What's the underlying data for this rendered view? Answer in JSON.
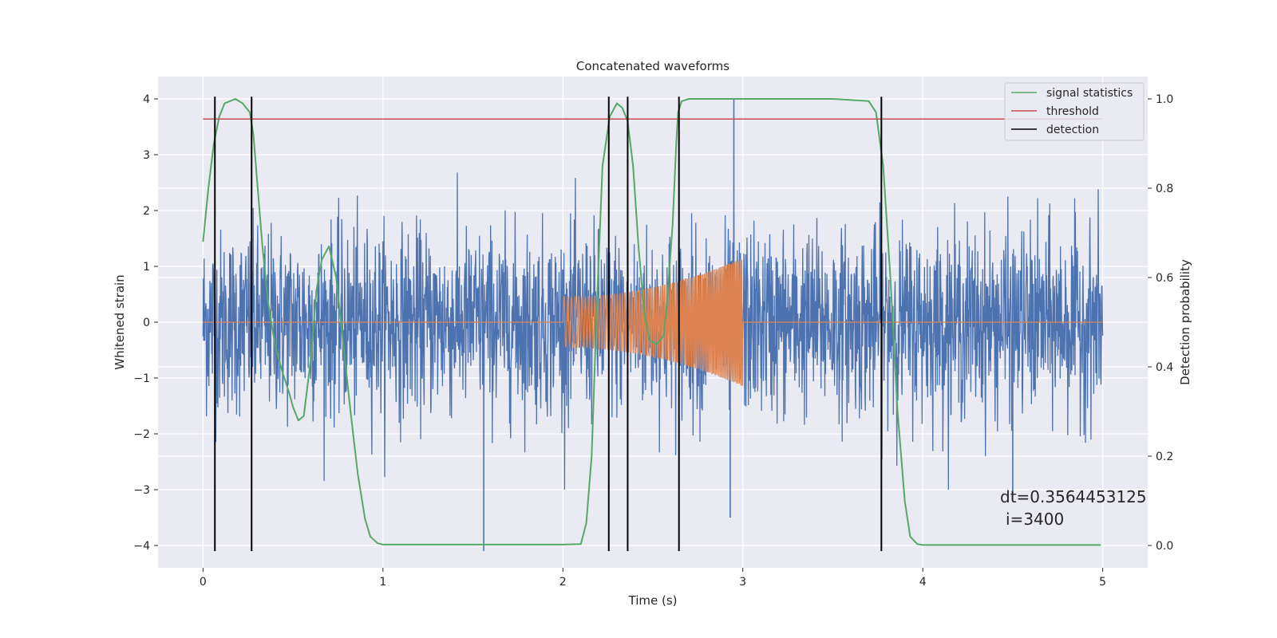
{
  "chart_data": {
    "type": "line",
    "title": "Concatenated waveforms",
    "xlabel": "Time (s)",
    "ylabel": "Whitened strain",
    "y2label": "Detection probability",
    "xlim": [
      -0.25,
      5.25
    ],
    "ylim": [
      -4.4,
      4.4
    ],
    "y2lim": [
      -0.05,
      1.05
    ],
    "x_ticks": [
      0,
      1,
      2,
      3,
      4,
      5
    ],
    "x_tick_labels": [
      "0",
      "1",
      "2",
      "3",
      "4",
      "5"
    ],
    "y_ticks": [
      -4,
      -3,
      -2,
      -1,
      0,
      1,
      2,
      3,
      4
    ],
    "y_tick_labels": [
      "−4",
      "−3",
      "−2",
      "−1",
      "0",
      "1",
      "2",
      "3",
      "4"
    ],
    "y2_ticks": [
      0.0,
      0.2,
      0.4,
      0.6,
      0.8,
      1.0
    ],
    "y2_tick_labels": [
      "0.0",
      "0.2",
      "0.4",
      "0.6",
      "0.8",
      "1.0"
    ],
    "grid": true,
    "legend_position": "top-right",
    "colors": {
      "strain": "#4c72b0",
      "injected": "#dd8452",
      "signal_statistics": "#55a868",
      "threshold": "#c44e52",
      "detection": "#000000",
      "plot_background": "#eaeaf2",
      "grid": "#ffffff"
    },
    "strain_series": {
      "x_range": [
        0,
        5
      ],
      "typical_amplitude": 1.8,
      "peak_max": 4.0,
      "peak_min": -4.1
    },
    "injected_signal": {
      "x_range": [
        2.0,
        3.0
      ],
      "amplitude_start": 0.45,
      "amplitude_end": 1.15
    },
    "series": [
      {
        "name": "signal statistics",
        "axis": "right",
        "x": [
          0.0,
          0.03,
          0.06,
          0.09,
          0.12,
          0.18,
          0.22,
          0.26,
          0.28,
          0.3,
          0.33,
          0.36,
          0.4,
          0.44,
          0.48,
          0.5,
          0.53,
          0.56,
          0.6,
          0.63,
          0.66,
          0.7,
          0.74,
          0.78,
          0.82,
          0.86,
          0.9,
          0.93,
          0.97,
          1.0,
          1.5,
          2.0,
          2.1,
          2.13,
          2.16,
          2.19,
          2.22,
          2.26,
          2.3,
          2.33,
          2.36,
          2.39,
          2.42,
          2.45,
          2.48,
          2.52,
          2.56,
          2.58,
          2.61,
          2.63,
          2.64,
          2.66,
          2.7,
          2.8,
          3.0,
          3.5,
          3.7,
          3.74,
          3.78,
          3.82,
          3.86,
          3.9,
          3.93,
          3.97,
          4.0,
          4.5,
          4.99
        ],
        "values": [
          0.68,
          0.8,
          0.9,
          0.96,
          0.99,
          1.0,
          0.99,
          0.97,
          0.92,
          0.82,
          0.67,
          0.55,
          0.45,
          0.39,
          0.34,
          0.31,
          0.28,
          0.29,
          0.42,
          0.57,
          0.64,
          0.67,
          0.6,
          0.45,
          0.3,
          0.16,
          0.06,
          0.02,
          0.005,
          0.002,
          0.002,
          0.002,
          0.003,
          0.05,
          0.2,
          0.55,
          0.85,
          0.96,
          0.99,
          0.98,
          0.95,
          0.85,
          0.67,
          0.53,
          0.46,
          0.45,
          0.47,
          0.55,
          0.72,
          0.9,
          0.97,
          0.995,
          1.0,
          1.0,
          1.0,
          1.0,
          0.995,
          0.97,
          0.85,
          0.6,
          0.3,
          0.1,
          0.02,
          0.003,
          0.001,
          0.001,
          0.001
        ]
      },
      {
        "name": "threshold",
        "axis": "right",
        "x": [
          0,
          5
        ],
        "values": [
          0.955,
          0.955
        ]
      },
      {
        "name": "detection",
        "type": "vlines",
        "x": [
          0.066,
          0.27,
          2.255,
          2.36,
          2.645,
          3.77
        ]
      }
    ],
    "annotations": [
      "dt=0.3564453125",
      "i=3400"
    ]
  }
}
